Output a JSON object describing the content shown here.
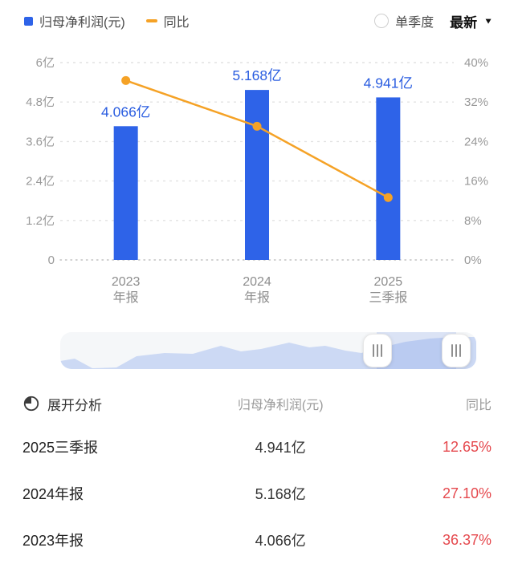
{
  "colors": {
    "bar_blue": "#2E63E8",
    "value_label_blue": "#2A5DE0",
    "line_orange": "#F5A226",
    "grid_gray": "#e2e2e2",
    "zero_line_gray": "#c2c2c2",
    "axis_text_gray": "#999999",
    "x_label_gray": "#8d8d8d",
    "yoy_red": "#E5484D"
  },
  "legend": {
    "profit_label": "归母净利润(元)",
    "yoy_label": "同比"
  },
  "controls": {
    "single_quarter_label": "单季度",
    "period_selector_value": "最新",
    "caret_icon": "▼"
  },
  "chart_data": {
    "type": "bar",
    "categories": [
      [
        "2023",
        "年报"
      ],
      [
        "2024",
        "年报"
      ],
      [
        "2025",
        "三季报"
      ]
    ],
    "series": [
      {
        "name": "归母净利润(元)",
        "type": "bar",
        "values": [
          4.066,
          5.168,
          4.941
        ],
        "labels": [
          "4.066亿",
          "5.168亿",
          "4.941亿"
        ],
        "unit": "亿"
      },
      {
        "name": "同比",
        "type": "line",
        "values": [
          36.37,
          27.1,
          12.65
        ],
        "unit": "%"
      }
    ],
    "left_axis": {
      "ticks": [
        "6亿",
        "4.8亿",
        "3.6亿",
        "2.4亿",
        "1.2亿",
        "0"
      ],
      "min": 0,
      "max": 6
    },
    "right_axis": {
      "ticks": [
        "40%",
        "32%",
        "24%",
        "16%",
        "8%",
        "0%"
      ],
      "min": 0,
      "max": 40
    },
    "grid": "dashed horizontal",
    "legend_position": "top-left"
  },
  "table": {
    "header": {
      "expand_label": "展开分析",
      "value_col": "归母净利润(元)",
      "yoy_col": "同比"
    },
    "rows": [
      {
        "period": "2025三季报",
        "value": "4.941亿",
        "yoy": "12.65%"
      },
      {
        "period": "2024年报",
        "value": "5.168亿",
        "yoy": "27.10%"
      },
      {
        "period": "2023年报",
        "value": "4.066亿",
        "yoy": "36.37%"
      }
    ]
  }
}
